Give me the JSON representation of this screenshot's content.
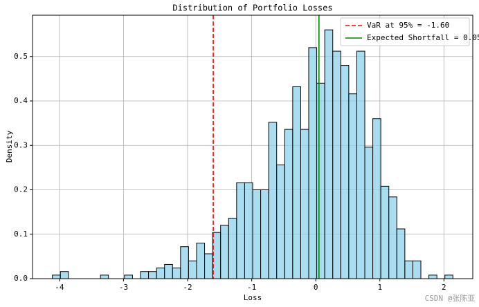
{
  "chart_data": {
    "type": "histogram",
    "title": "Distribution of Portfolio Losses",
    "x_label": "Loss",
    "y_label": "Density",
    "bins": [
      -4.11,
      -3.985,
      -3.86,
      -3.735,
      -3.61,
      -3.485,
      -3.36,
      -3.235,
      -3.11,
      -2.985,
      -2.86,
      -2.735,
      -2.61,
      -2.485,
      -2.36,
      -2.235,
      -2.11,
      -1.985,
      -1.86,
      -1.735,
      -1.61,
      -1.485,
      -1.36,
      -1.235,
      -1.11,
      -0.985,
      -0.86,
      -0.735,
      -0.61,
      -0.485,
      -0.36,
      -0.235,
      -0.11,
      0.015,
      0.14,
      0.265,
      0.39,
      0.515,
      0.64,
      0.765,
      0.89,
      1.015,
      1.14,
      1.265,
      1.39,
      1.515,
      1.64,
      1.765,
      1.89,
      2.015,
      2.14
    ],
    "values": [
      0.008,
      0.016,
      0,
      0,
      0,
      0,
      0.008,
      0,
      0,
      0.008,
      0,
      0.016,
      0.016,
      0.024,
      0.032,
      0.024,
      0.072,
      0.04,
      0.08,
      0.056,
      0.104,
      0.12,
      0.136,
      0.216,
      0.216,
      0.2,
      0.2,
      0.352,
      0.256,
      0.336,
      0.432,
      0.336,
      0.52,
      0.44,
      0.56,
      0.512,
      0.48,
      0.416,
      0.512,
      0.296,
      0.36,
      0.208,
      0.184,
      0.112,
      0.04,
      0.04,
      0,
      0.008,
      0,
      0.008
    ],
    "color": "#87ceeb",
    "lines": [
      {
        "label": "VaR at 95% = -1.60",
        "value": -1.6,
        "color": "#ff0000",
        "style": "dashed"
      },
      {
        "label": "Expected Shortfall = 0.05",
        "value": 0.05,
        "color": "#008000",
        "style": "solid"
      }
    ],
    "xlim": [
      -4.42,
      2.45
    ],
    "ylim": [
      0,
      0.593
    ],
    "xticks": [
      -4,
      -3,
      -2,
      -1,
      0,
      1,
      2
    ],
    "yticks": [
      {
        "value": 0,
        "label": "0.0"
      },
      0.1,
      0.2,
      0.3,
      0.4,
      0.5
    ],
    "grid": true,
    "legend": "upper right",
    "watermark": "CSDN @张陈亚"
  }
}
